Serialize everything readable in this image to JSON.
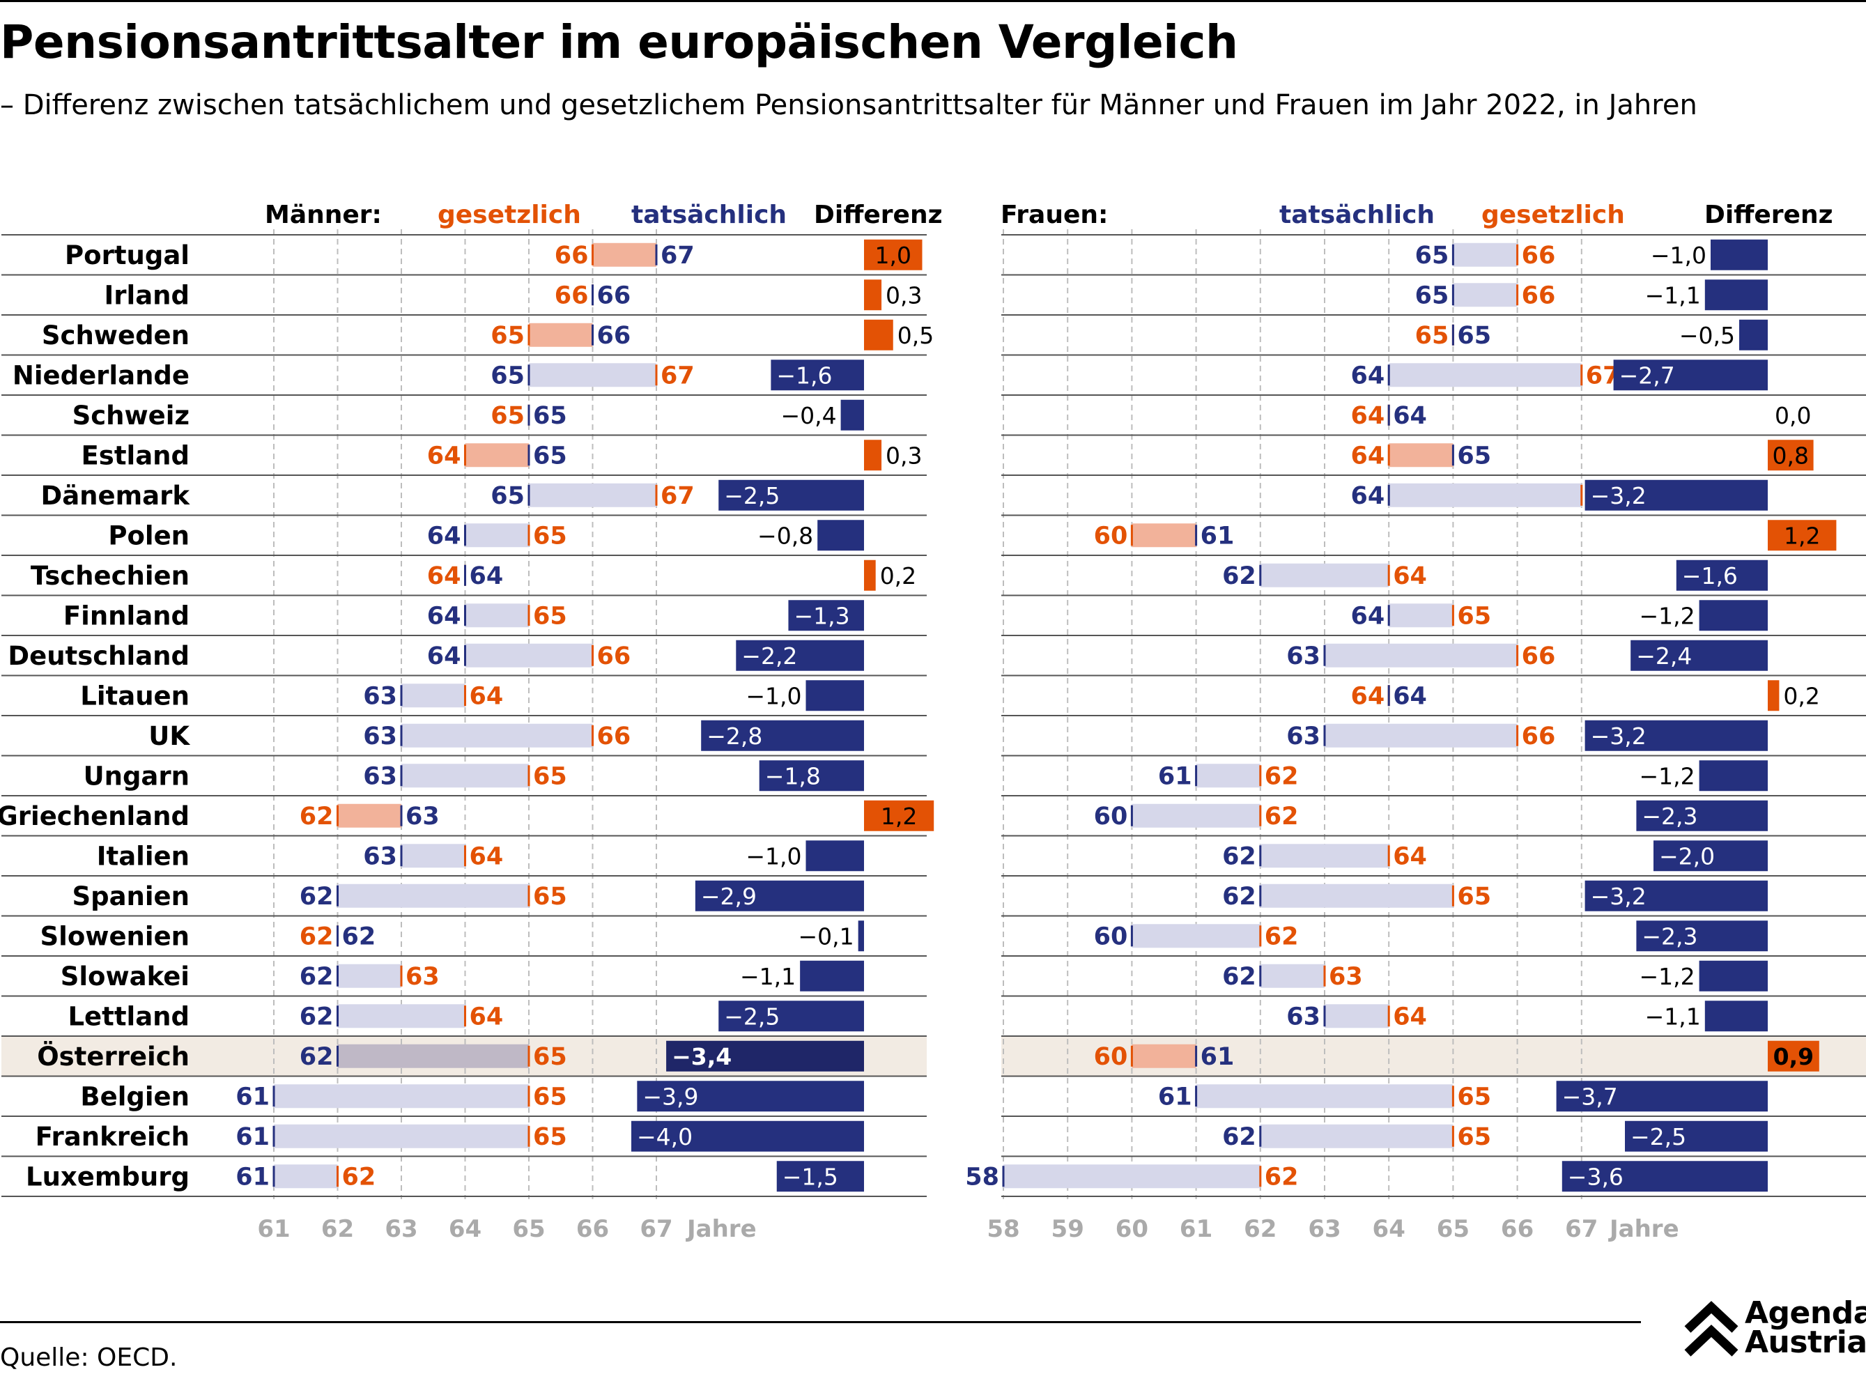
{
  "title": "Pensionsantrittsalter im europäischen Vergleich",
  "subtitle": "– Differenz zwischen tatsächlichem und gesetzlichem Pensionsantrittsalter für Männer und Frauen im Jahr 2022, in Jahren",
  "source": "Quelle: OECD.",
  "logo": {
    "line1": "Agenda",
    "line2": "Austria",
    "icon": "double-chevron-up-icon"
  },
  "colors": {
    "orange": "#E35205",
    "navy": "#25307E",
    "orange_light": "#F2B29A",
    "navy_light": "#D6D7EA",
    "highlight": "#F2EBE3"
  },
  "headers": {
    "maenner": "Männer:",
    "frauen": "Frauen:",
    "gesetzlich": "gesetzlich",
    "tatsaechlich": "tatsächlich",
    "differenz": "Differenz",
    "jahre": "Jahre"
  },
  "chart_data": {
    "type": "range-bar-with-difference",
    "unit": "Jahre",
    "highlighted_country": "Österreich",
    "panels": [
      {
        "name": "Männer",
        "xlim": [
          60,
          68
        ],
        "ticks": [
          61,
          62,
          63,
          64,
          65,
          66,
          67
        ]
      },
      {
        "name": "Frauen",
        "xlim": [
          58,
          67.5
        ],
        "ticks": [
          58,
          59,
          60,
          61,
          62,
          63,
          64,
          65,
          66,
          67
        ]
      }
    ],
    "countries": [
      "Portugal",
      "Irland",
      "Schweden",
      "Niederlande",
      "Schweiz",
      "Estland",
      "Dänemark",
      "Polen",
      "Tschechien",
      "Finnland",
      "Deutschland",
      "Litauen",
      "UK",
      "Ungarn",
      "Griechenland",
      "Italien",
      "Spanien",
      "Slowenien",
      "Slowakei",
      "Lettland",
      "Österreich",
      "Belgien",
      "Frankreich",
      "Luxemburg"
    ],
    "men": {
      "gesetzlich": [
        66,
        66,
        65,
        67,
        65,
        64,
        67,
        65,
        64,
        65,
        66,
        64,
        66,
        65,
        62,
        64,
        65,
        62,
        63,
        64,
        65,
        65,
        65,
        62
      ],
      "tatsaechlich": [
        67,
        66,
        66,
        65,
        65,
        65,
        65,
        64,
        64,
        64,
        64,
        63,
        63,
        63,
        63,
        63,
        62,
        62,
        62,
        62,
        62,
        61,
        61,
        61
      ],
      "differenz": [
        1.0,
        0.3,
        0.5,
        -1.6,
        -0.4,
        0.3,
        -2.5,
        -0.8,
        0.2,
        -1.3,
        -2.2,
        -1.0,
        -2.8,
        -1.8,
        1.2,
        -1.0,
        -2.9,
        -0.1,
        -1.1,
        -2.5,
        -3.4,
        -3.9,
        -4.0,
        -1.5
      ]
    },
    "women": {
      "gesetzlich": [
        66,
        66,
        65,
        67,
        64,
        64,
        67,
        60,
        64,
        65,
        66,
        64,
        66,
        62,
        62,
        64,
        65,
        62,
        63,
        64,
        60,
        65,
        65,
        62
      ],
      "tatsaechlich": [
        65,
        65,
        65,
        64,
        64,
        65,
        64,
        61,
        62,
        64,
        63,
        64,
        63,
        61,
        60,
        62,
        62,
        60,
        62,
        63,
        61,
        61,
        62,
        58
      ],
      "differenz": [
        -1.0,
        -1.1,
        -0.5,
        -2.7,
        0.0,
        0.8,
        -3.2,
        1.2,
        -1.6,
        -1.2,
        -2.4,
        0.2,
        -3.2,
        -1.2,
        -2.3,
        -2.0,
        -3.2,
        -2.3,
        -1.2,
        -1.1,
        0.9,
        -3.7,
        -2.5,
        -3.6
      ]
    }
  }
}
